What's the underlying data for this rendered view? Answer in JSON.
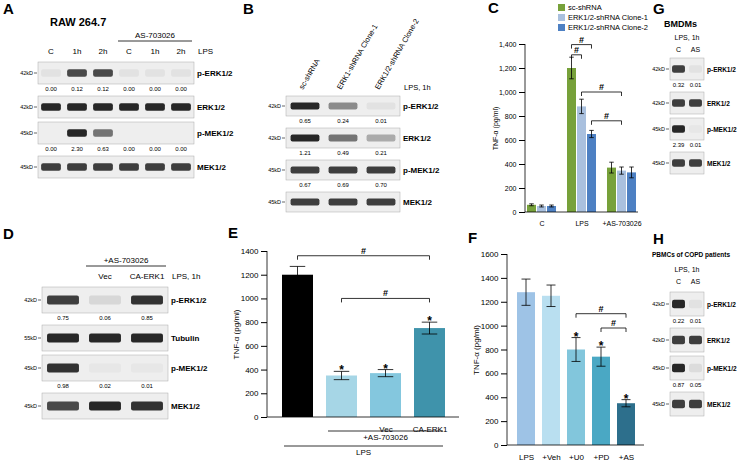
{
  "chart_data": [
    {
      "panel": "C",
      "type": "bar",
      "categories": [
        "C",
        "LPS",
        "+AS-703026"
      ],
      "series": [
        {
          "name": "sc-shRNA",
          "color": "#77a13a",
          "values": [
            60,
            1200,
            370
          ],
          "errors": [
            8,
            90,
            45
          ]
        },
        {
          "name": "ERK1/2-shRNA Clone-1",
          "color": "#a9c0de",
          "values": [
            50,
            880,
            345
          ],
          "errors": [
            8,
            60,
            30
          ]
        },
        {
          "name": "ERK1/2-shRNA Clone-2",
          "color": "#4d80c3",
          "values": [
            50,
            650,
            330
          ],
          "errors": [
            8,
            30,
            45
          ]
        }
      ],
      "y_label": "TNF-α (pg/ml)",
      "ylim": [
        0,
        1400
      ],
      "yticks": [
        0,
        200,
        400,
        600,
        800,
        {
          "value": 1000,
          "label": "1,000"
        },
        {
          "value": 1200,
          "label": "1,200"
        },
        {
          "value": 1400,
          "label": "1,400"
        }
      ],
      "legend": "top-right",
      "annotations": [
        {
          "text": "#",
          "from": [
            1,
            0
          ],
          "to": [
            1,
            1
          ],
          "at": 1310
        },
        {
          "text": "#",
          "from": [
            1,
            0
          ],
          "to": [
            1,
            2
          ],
          "at": 1395
        },
        {
          "text": "#",
          "from": [
            1,
            1
          ],
          "to": [
            2,
            1
          ],
          "at": 1000
        },
        {
          "text": "#",
          "from": [
            1,
            2
          ],
          "to": [
            2,
            1
          ],
          "at": 760
        }
      ]
    },
    {
      "panel": "E",
      "type": "bar",
      "categories": [
        null,
        null,
        "Vec",
        "CA-ERK1"
      ],
      "values": [
        1200,
        350,
        370,
        750
      ],
      "errors": [
        70,
        35,
        30,
        50
      ],
      "colors": [
        "#000000",
        "#a6d6e6",
        "#84c7de",
        "#3f93ab"
      ],
      "y_label": "TNF-α (pg/ml)",
      "ylim": [
        0,
        1400
      ],
      "yticks": [
        0,
        200,
        400,
        600,
        800,
        1000,
        1200,
        1400
      ],
      "groups": [
        {
          "label": "+AS-703026",
          "from": 1,
          "to": 3
        },
        {
          "label": "LPS",
          "from": 0,
          "to": 3
        }
      ],
      "annotations": [
        {
          "text": "*",
          "bar": 1
        },
        {
          "text": "*",
          "bar": 2
        },
        {
          "text": "*",
          "bar": 3
        },
        {
          "text": "#",
          "from": 0,
          "to": 3,
          "at": 1360
        },
        {
          "text": "#",
          "from": 1,
          "to": 3,
          "at": 1000
        }
      ]
    },
    {
      "panel": "F",
      "type": "bar",
      "categories": [
        "LPS",
        "+Veh",
        "+U0",
        "+PD",
        "+AS"
      ],
      "values": [
        1280,
        1250,
        800,
        740,
        350
      ],
      "errors": [
        110,
        90,
        100,
        80,
        30
      ],
      "colors": [
        "#9ec3e6",
        "#b9dff0",
        "#82c6dc",
        "#4aa8c4",
        "#2d6f8c"
      ],
      "y_label": "TNF-α (pg/ml)",
      "ylim": [
        0,
        1600
      ],
      "yticks": [
        0,
        200,
        400,
        600,
        800,
        1000,
        1200,
        1400,
        1600
      ],
      "annotations": [
        {
          "text": "*",
          "bar": 2
        },
        {
          "text": "*",
          "bar": 3
        },
        {
          "text": "*",
          "bar": 4
        },
        {
          "text": "#",
          "from": 2,
          "to": 4,
          "at": 1100
        },
        {
          "text": "#",
          "from": 3,
          "to": 4,
          "at": 980
        }
      ]
    }
  ],
  "blots": [
    {
      "panel": "A",
      "title": "RAW 264.7",
      "treatment": "LPS",
      "lanes": [
        "C",
        "1h",
        "2h",
        "C",
        "1h",
        "2h"
      ],
      "groups": [
        {
          "label": "AS-703026",
          "lanes": [
            3,
            5
          ]
        }
      ],
      "rows": [
        {
          "name": "p-ERK1/2",
          "mw": "42kD",
          "bands": [
            0.05,
            0.75,
            0.75,
            0.05,
            0.05,
            0.05
          ],
          "quant": [
            "0.00",
            "0.12",
            "0.12",
            "0.00",
            "0.00",
            "0.00"
          ]
        },
        {
          "name": "ERK1/2",
          "mw": "42kD",
          "bands": [
            0.9,
            0.9,
            0.9,
            0.9,
            0.9,
            0.9
          ]
        },
        {
          "name": "p-MEK1/2",
          "mw": "45kD",
          "bands": [
            0,
            0.9,
            0.55,
            0,
            0,
            0
          ],
          "quant": [
            "0.00",
            "2.30",
            "0.63",
            "0.00",
            "0.00",
            "0.00"
          ]
        },
        {
          "name": "MEK1/2",
          "mw": "45kD",
          "bands": [
            0.8,
            0.8,
            0.8,
            0.8,
            0.8,
            0.8
          ]
        }
      ]
    },
    {
      "panel": "B",
      "treatment": "LPS, 1h",
      "lanes": [
        "sc-shRNA",
        "ERK1-shRNA Clone-1",
        "ERK1/2-shRNA Clone-2"
      ],
      "rows": [
        {
          "name": "p-ERK1/2",
          "mw": "42kD",
          "bands": [
            0.9,
            0.45,
            0.05
          ],
          "quant": [
            "0.65",
            "0.24",
            "0.01"
          ]
        },
        {
          "name": "ERK1/2",
          "mw": "42kD",
          "bands": [
            0.9,
            0.55,
            0.3
          ],
          "quant": [
            "1.21",
            "0.49",
            "0.21"
          ]
        },
        {
          "name": "p-MEK1/2",
          "mw": "45kD",
          "bands": [
            0.8,
            0.8,
            0.8
          ],
          "quant": [
            "0.67",
            "0.69",
            "0.70"
          ]
        },
        {
          "name": "MEK1/2",
          "mw": "45kD",
          "bands": [
            0.8,
            0.8,
            0.8
          ]
        }
      ]
    },
    {
      "panel": "D",
      "treatment": "LPS, 1h",
      "lanes": [
        null,
        "Vec",
        "CA-ERK1"
      ],
      "groups": [
        {
          "label": "+AS-703026",
          "lanes": [
            1,
            2
          ]
        }
      ],
      "rows": [
        {
          "name": "p-ERK1/2",
          "mw": "42kD",
          "bands": [
            0.8,
            0.1,
            0.85
          ],
          "quant": [
            "0.75",
            "0.06",
            "0.85"
          ]
        },
        {
          "name": "Tubulin",
          "mw": "55kD",
          "bands": [
            0.9,
            0.9,
            0.9
          ]
        },
        {
          "name": "p-MEK1/2",
          "mw": "45kD",
          "bands": [
            0.85,
            0.03,
            0.03
          ],
          "quant": [
            "0.98",
            "0.02",
            "0.01"
          ]
        },
        {
          "name": "MEK1/2",
          "mw": "45kD",
          "bands": [
            0.75,
            0.9,
            0.85
          ]
        }
      ]
    },
    {
      "panel": "G",
      "title": "BMDMs",
      "treatment": "LPS, 1h",
      "lanes": [
        "C",
        "AS"
      ],
      "rows": [
        {
          "name": "p-ERK1/2",
          "mw": "42kD",
          "bands": [
            0.8,
            0.05
          ],
          "quant": [
            "0.32",
            "0.01"
          ]
        },
        {
          "name": "ERK1/2",
          "mw": "42kD",
          "bands": [
            0.8,
            0.8
          ]
        },
        {
          "name": "p-MEK1/2",
          "mw": "45kD",
          "bands": [
            0.9,
            0.03
          ],
          "quant": [
            "2.39",
            "0.01"
          ]
        },
        {
          "name": "MEK1/2",
          "mw": "45kD",
          "bands": [
            0.8,
            0.8
          ]
        }
      ]
    },
    {
      "panel": "H",
      "title": "PBMCs of COPD patients",
      "treatment": "LPS, 1h",
      "lanes": [
        "C",
        "AS"
      ],
      "rows": [
        {
          "name": "p-ERK1/2",
          "mw": "42kD",
          "bands": [
            0.9,
            0.05
          ],
          "quant": [
            "0.22",
            "0.01"
          ]
        },
        {
          "name": "ERK1/2",
          "mw": "42kD",
          "bands": [
            0.8,
            0.8
          ]
        },
        {
          "name": "p-MEK1/2",
          "mw": "45kD",
          "bands": [
            0.9,
            0.08
          ],
          "quant": [
            "0.87",
            "0.05"
          ]
        },
        {
          "name": "MEK1/2",
          "mw": "45kD",
          "bands": [
            0.8,
            0.8
          ]
        }
      ]
    }
  ]
}
